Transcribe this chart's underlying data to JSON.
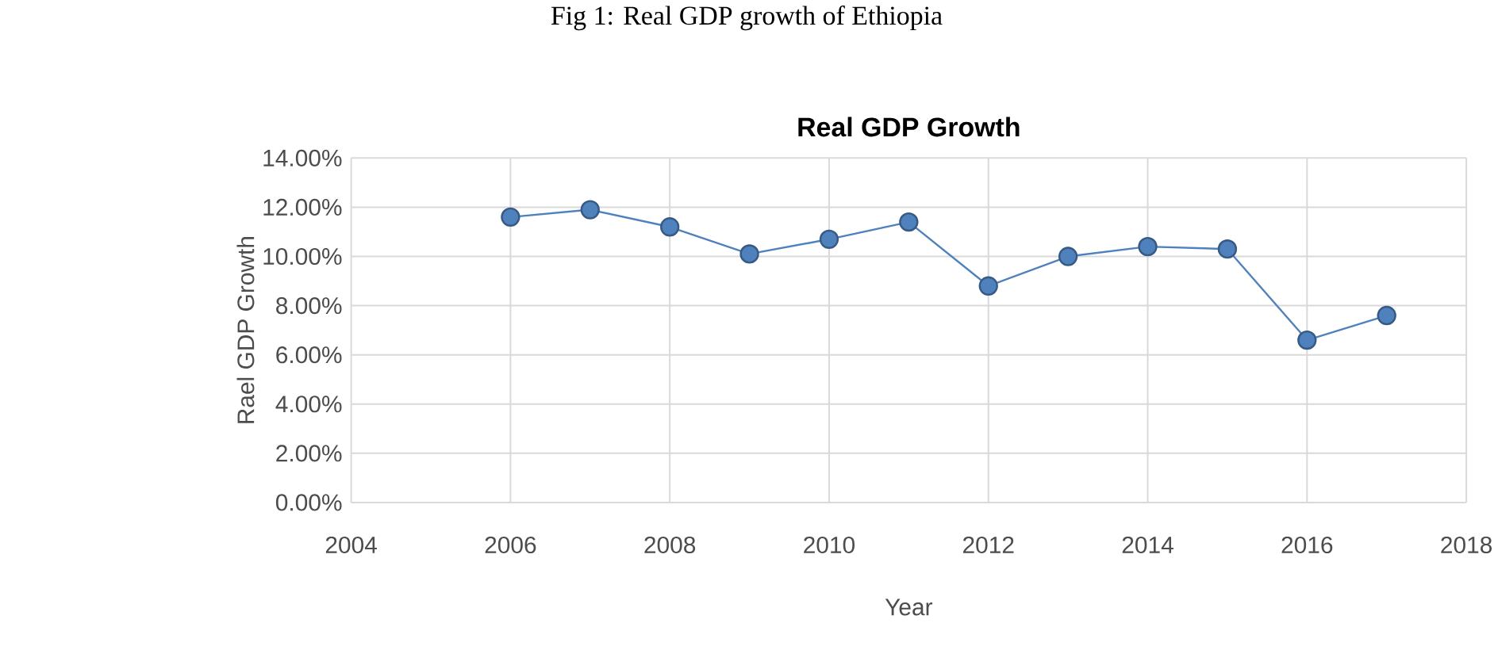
{
  "chart_data": {
    "type": "line",
    "title": "Real GDP Growth",
    "xlabel": "Year",
    "ylabel": "Rael GDP Growth",
    "annotations": [
      "Fig 1: Real GDP growth of Ethiopia"
    ],
    "x": [
      2006,
      2007,
      2008,
      2009,
      2010,
      2011,
      2012,
      2013,
      2014,
      2015,
      2016,
      2017
    ],
    "series": [
      {
        "color": "#4f81bd",
        "values": [
          11.6,
          11.9,
          11.2,
          10.1,
          10.7,
          11.4,
          8.8,
          10.0,
          10.4,
          10.3,
          6.6,
          7.6
        ]
      }
    ],
    "xlim": [
      2004,
      2018
    ],
    "xticks": [
      2004,
      2006,
      2008,
      2010,
      2012,
      2014,
      2016,
      2018
    ],
    "ylim": [
      0,
      14
    ],
    "yticks": [
      {
        "value": 0,
        "label": "0.00%"
      },
      {
        "value": 2,
        "label": "2.00%"
      },
      {
        "value": 4,
        "label": "4.00%"
      },
      {
        "value": 6,
        "label": "6.00%"
      },
      {
        "value": 8,
        "label": "8.00%"
      },
      {
        "value": 10,
        "label": "10.00%"
      },
      {
        "value": 12,
        "label": "12.00%"
      },
      {
        "value": 14,
        "label": "14.00%"
      }
    ],
    "grid": true,
    "marker": "circle",
    "line_style": "solid"
  }
}
